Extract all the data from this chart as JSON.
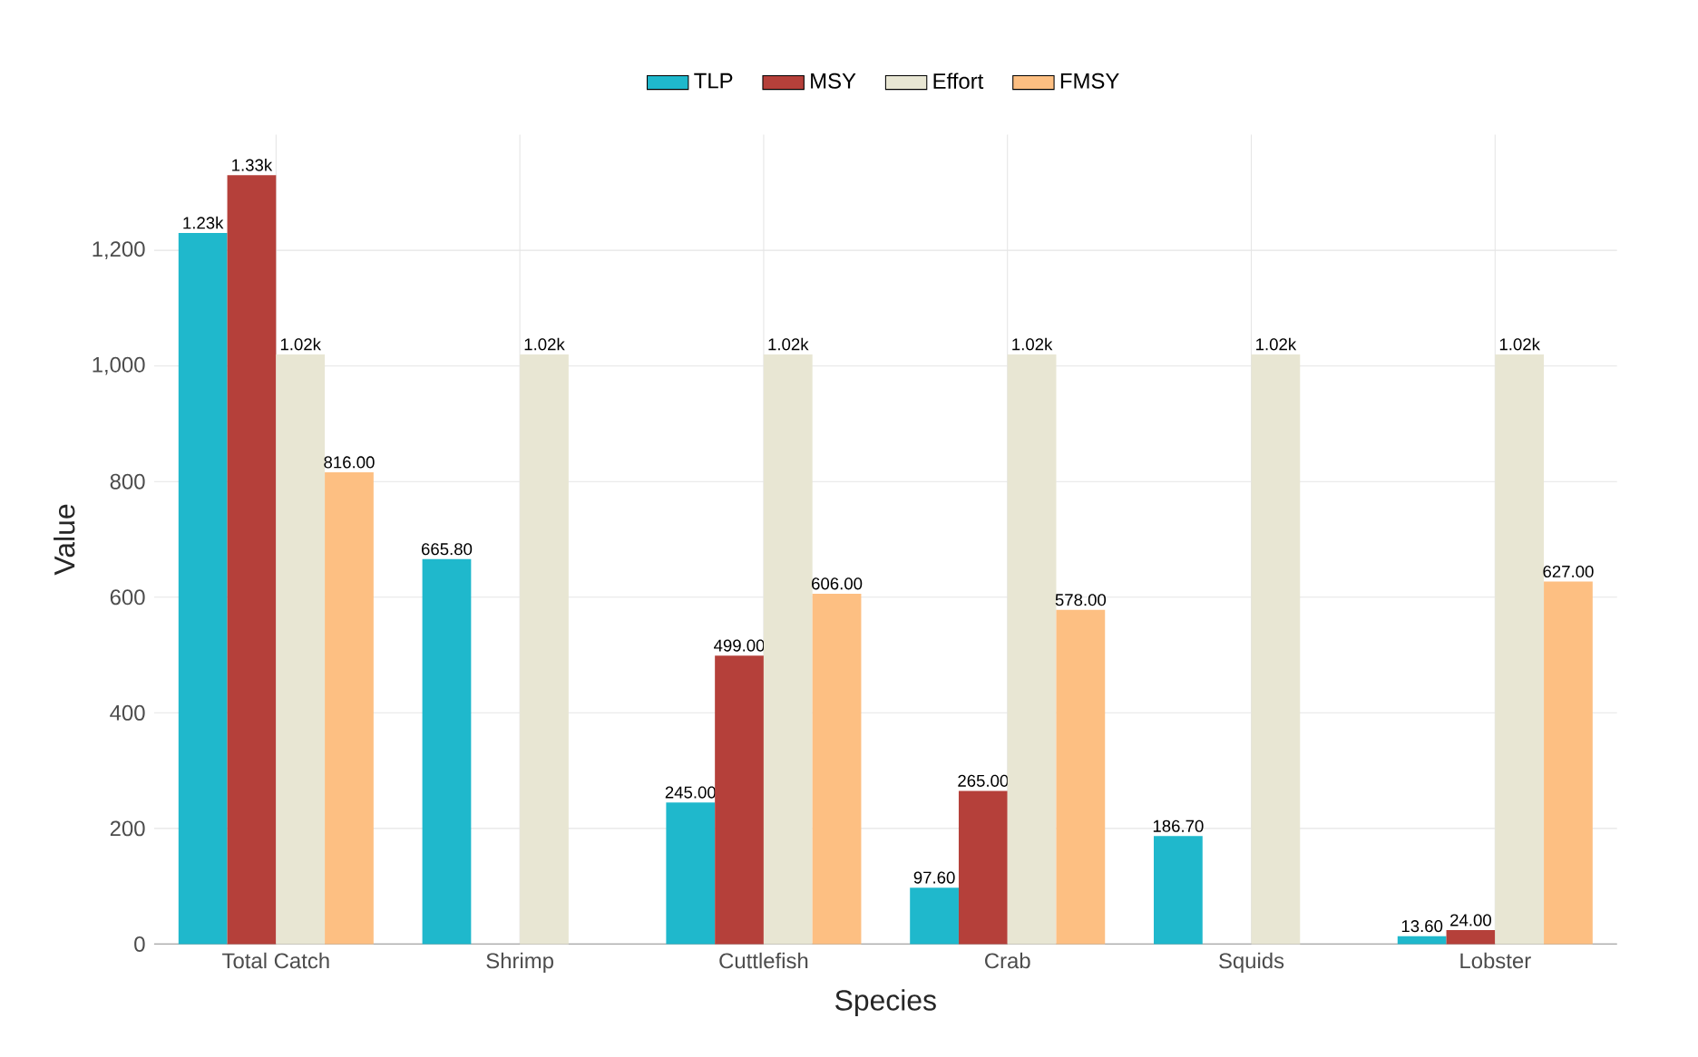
{
  "chart_data": {
    "type": "bar",
    "xlabel": "Species",
    "ylabel": "Value",
    "categories": [
      "Total Catch",
      "Shrimp",
      "Cuttlefish",
      "Crab",
      "Squids",
      "Lobster"
    ],
    "series": [
      {
        "name": "TLP",
        "color": "#1fb8cc",
        "values": [
          1230,
          665.8,
          245,
          97.6,
          186.7,
          13.6
        ],
        "value_labels": [
          "1.23k",
          "665.80",
          "245.00",
          "97.60",
          "186.70",
          "13.60"
        ]
      },
      {
        "name": "MSY",
        "color": "#b5403a",
        "values": [
          1330,
          null,
          499,
          265,
          null,
          24
        ],
        "value_labels": [
          "1.33k",
          null,
          "499.00",
          "265.00",
          null,
          "24.00"
        ]
      },
      {
        "name": "Effort",
        "color": "#e8e6d3",
        "values": [
          1020,
          1020,
          1020,
          1020,
          1020,
          1020
        ],
        "value_labels": [
          "1.02k",
          "1.02k",
          "1.02k",
          "1.02k",
          "1.02k",
          "1.02k"
        ]
      },
      {
        "name": "FMSY",
        "color": "#fdbf82",
        "values": [
          816,
          null,
          606,
          578,
          null,
          627
        ],
        "value_labels": [
          "816.00",
          null,
          "606.00",
          "578.00",
          null,
          "627.00"
        ]
      }
    ],
    "ylim": [
      0,
      1400
    ],
    "yticks": [
      0,
      200,
      400,
      600,
      800,
      {
        "value": 1000,
        "label": "1,000"
      },
      {
        "value": 1200,
        "label": "1,200"
      }
    ],
    "grid": true,
    "legend": "top"
  }
}
